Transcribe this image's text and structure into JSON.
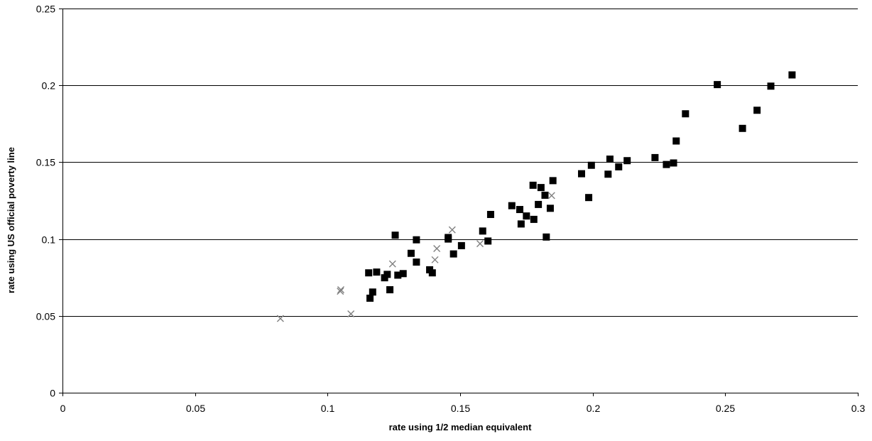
{
  "chart_data": {
    "type": "scatter",
    "title": "",
    "xlabel": "rate using 1/2 median equivalent",
    "ylabel": "rate using US official poverty line",
    "xlim": [
      0,
      0.3
    ],
    "ylim": [
      0,
      0.25
    ],
    "x_ticks": [
      0,
      0.05,
      0.1,
      0.15,
      0.2,
      0.25,
      0.3
    ],
    "x_tick_labels": [
      "0",
      "0.05",
      "0.1",
      "0.15",
      "0.2",
      "0.25",
      "0.3"
    ],
    "y_ticks": [
      0,
      0.05,
      0.1,
      0.15,
      0.2,
      0.25
    ],
    "y_tick_labels": [
      "0",
      "0.05",
      "0.1",
      "0.15",
      "0.2",
      "0.25"
    ],
    "grid": "horizontal",
    "legend": "none",
    "series": [
      {
        "marker": "square",
        "color": "#000000",
        "points": [
          [
            0.1155,
            0.078
          ],
          [
            0.1185,
            0.0785
          ],
          [
            0.1225,
            0.077
          ],
          [
            0.1215,
            0.0748
          ],
          [
            0.116,
            0.0615
          ],
          [
            0.117,
            0.0655
          ],
          [
            0.1235,
            0.067
          ],
          [
            0.1255,
            0.1025
          ],
          [
            0.1265,
            0.0765
          ],
          [
            0.1285,
            0.0775
          ],
          [
            0.1315,
            0.0907
          ],
          [
            0.1335,
            0.085
          ],
          [
            0.1335,
            0.0995
          ],
          [
            0.1385,
            0.08
          ],
          [
            0.1395,
            0.078
          ],
          [
            0.1455,
            0.1
          ],
          [
            0.1455,
            0.101
          ],
          [
            0.1475,
            0.0903
          ],
          [
            0.1505,
            0.0957
          ],
          [
            0.1585,
            0.1052
          ],
          [
            0.1605,
            0.0987
          ],
          [
            0.1615,
            0.116
          ],
          [
            0.1695,
            0.1217
          ],
          [
            0.1725,
            0.1192
          ],
          [
            0.173,
            0.1098
          ],
          [
            0.175,
            0.115
          ],
          [
            0.1775,
            0.135
          ],
          [
            0.1778,
            0.1128
          ],
          [
            0.1795,
            0.1225
          ],
          [
            0.1805,
            0.1335
          ],
          [
            0.182,
            0.1285
          ],
          [
            0.1825,
            0.1013
          ],
          [
            0.184,
            0.12
          ],
          [
            0.185,
            0.138
          ],
          [
            0.1958,
            0.1425
          ],
          [
            0.1985,
            0.127
          ],
          [
            0.1995,
            0.148
          ],
          [
            0.2058,
            0.1422
          ],
          [
            0.2065,
            0.152
          ],
          [
            0.2098,
            0.147
          ],
          [
            0.213,
            0.151
          ],
          [
            0.2235,
            0.153
          ],
          [
            0.2278,
            0.1485
          ],
          [
            0.2305,
            0.1495
          ],
          [
            0.2315,
            0.1638
          ],
          [
            0.235,
            0.1815
          ],
          [
            0.247,
            0.2005
          ],
          [
            0.2565,
            0.172
          ],
          [
            0.262,
            0.1838
          ],
          [
            0.2672,
            0.1995
          ],
          [
            0.2752,
            0.2068
          ]
        ]
      },
      {
        "marker": "x",
        "color": "#808080",
        "points": [
          [
            0.0822,
            0.0483
          ],
          [
            0.1048,
            0.066
          ],
          [
            0.105,
            0.067
          ],
          [
            0.1088,
            0.0513
          ],
          [
            0.1245,
            0.0838
          ],
          [
            0.1405,
            0.0865
          ],
          [
            0.1412,
            0.0938
          ],
          [
            0.147,
            0.106
          ],
          [
            0.1575,
            0.097
          ],
          [
            0.1845,
            0.1283
          ]
        ]
      }
    ]
  }
}
